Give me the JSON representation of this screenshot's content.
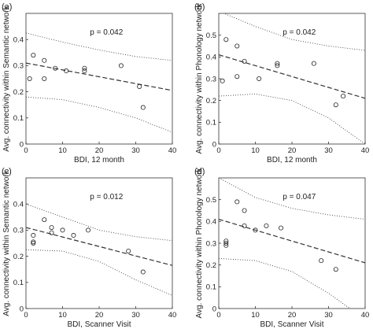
{
  "chart_data": [
    {
      "type": "scatter",
      "panel_label": "(a)",
      "annotation": "p = 0.042",
      "xlabel": "BDI, 12 month",
      "ylabel": "Avg. connectivity within Semantic network",
      "xlim": [
        0,
        40
      ],
      "ylim": [
        0,
        0.5
      ],
      "x_ticks": [
        "0",
        "10",
        "20",
        "30",
        "40"
      ],
      "y_ticks": [
        "0",
        "0.1",
        "0.2",
        "0.3",
        "0.4"
      ],
      "points": [
        {
          "x": 1,
          "y": 0.25
        },
        {
          "x": 2,
          "y": 0.34
        },
        {
          "x": 5,
          "y": 0.32
        },
        {
          "x": 5,
          "y": 0.25
        },
        {
          "x": 8,
          "y": 0.29
        },
        {
          "x": 11,
          "y": 0.28
        },
        {
          "x": 16,
          "y": 0.29
        },
        {
          "x": 16,
          "y": 0.28
        },
        {
          "x": 26,
          "y": 0.3
        },
        {
          "x": 31,
          "y": 0.22
        },
        {
          "x": 32,
          "y": 0.14
        }
      ],
      "fit_line": [
        0.31,
        0.205
      ],
      "ci_upper": [
        [
          0,
          0.425
        ],
        [
          10,
          0.39
        ],
        [
          20,
          0.36
        ],
        [
          30,
          0.335
        ],
        [
          40,
          0.32
        ]
      ],
      "ci_lower": [
        [
          0,
          0.18
        ],
        [
          10,
          0.17
        ],
        [
          20,
          0.14
        ],
        [
          30,
          0.1
        ],
        [
          40,
          0.045
        ]
      ],
      "grid": false,
      "legend": "none"
    },
    {
      "type": "scatter",
      "panel_label": "(b)",
      "annotation": "p = 0.042",
      "xlabel": "BDI, 12 month",
      "ylabel": "Avg. connectivity within Phonology network",
      "xlim": [
        0,
        40
      ],
      "ylim": [
        0,
        0.6
      ],
      "x_ticks": [
        "0",
        "10",
        "20",
        "30",
        "40"
      ],
      "y_ticks": [
        "0",
        "0.1",
        "0.2",
        "0.3",
        "0.4",
        "0.5"
      ],
      "points": [
        {
          "x": 1,
          "y": 0.29
        },
        {
          "x": 2,
          "y": 0.48
        },
        {
          "x": 5,
          "y": 0.45
        },
        {
          "x": 5,
          "y": 0.31
        },
        {
          "x": 7,
          "y": 0.38
        },
        {
          "x": 11,
          "y": 0.3
        },
        {
          "x": 16,
          "y": 0.37
        },
        {
          "x": 16,
          "y": 0.36
        },
        {
          "x": 26,
          "y": 0.37
        },
        {
          "x": 32,
          "y": 0.18
        },
        {
          "x": 34,
          "y": 0.22
        }
      ],
      "fit_line": [
        0.41,
        0.21
      ],
      "ci_upper": [
        [
          0,
          0.61
        ],
        [
          10,
          0.54
        ],
        [
          20,
          0.48
        ],
        [
          30,
          0.45
        ],
        [
          40,
          0.43
        ]
      ],
      "ci_lower": [
        [
          0,
          0.22
        ],
        [
          10,
          0.23
        ],
        [
          20,
          0.2
        ],
        [
          30,
          0.12
        ],
        [
          40,
          0.0
        ]
      ],
      "grid": false,
      "legend": "none"
    },
    {
      "type": "scatter",
      "panel_label": "(c)",
      "annotation": "p = 0.012",
      "xlabel": "BDI, Scanner Visit",
      "ylabel": "Avg. connectivity within Semantic network",
      "xlim": [
        0,
        40
      ],
      "ylim": [
        0,
        0.5
      ],
      "x_ticks": [
        "0",
        "10",
        "20",
        "30",
        "40"
      ],
      "y_ticks": [
        "0",
        "0.1",
        "0.2",
        "0.3",
        "0.4"
      ],
      "points": [
        {
          "x": 2,
          "y": 0.28
        },
        {
          "x": 2,
          "y": 0.25
        },
        {
          "x": 2,
          "y": 0.255
        },
        {
          "x": 5,
          "y": 0.34
        },
        {
          "x": 7,
          "y": 0.31
        },
        {
          "x": 7,
          "y": 0.29
        },
        {
          "x": 10,
          "y": 0.3
        },
        {
          "x": 13,
          "y": 0.28
        },
        {
          "x": 17,
          "y": 0.3
        },
        {
          "x": 28,
          "y": 0.22
        },
        {
          "x": 32,
          "y": 0.14
        }
      ],
      "fit_line": [
        0.31,
        0.165
      ],
      "ci_upper": [
        [
          0,
          0.4
        ],
        [
          10,
          0.35
        ],
        [
          20,
          0.3
        ],
        [
          30,
          0.275
        ],
        [
          40,
          0.26
        ]
      ],
      "ci_lower": [
        [
          0,
          0.225
        ],
        [
          10,
          0.22
        ],
        [
          20,
          0.18
        ],
        [
          30,
          0.11
        ],
        [
          40,
          0.05
        ]
      ],
      "grid": false,
      "legend": "none"
    },
    {
      "type": "scatter",
      "panel_label": "(d)",
      "annotation": "p = 0.047",
      "xlabel": "BDI, Scanner Visit",
      "ylabel": "Avg. connectivity within Phonology network",
      "xlim": [
        0,
        40
      ],
      "ylim": [
        0,
        0.6
      ],
      "x_ticks": [
        "0",
        "10",
        "20",
        "30",
        "40"
      ],
      "y_ticks": [
        "0",
        "0.1",
        "0.2",
        "0.3",
        "0.4",
        "0.5"
      ],
      "points": [
        {
          "x": 2,
          "y": 0.3
        },
        {
          "x": 2,
          "y": 0.31
        },
        {
          "x": 2,
          "y": 0.29
        },
        {
          "x": 5,
          "y": 0.49
        },
        {
          "x": 7,
          "y": 0.45
        },
        {
          "x": 7,
          "y": 0.38
        },
        {
          "x": 10,
          "y": 0.36
        },
        {
          "x": 13,
          "y": 0.38
        },
        {
          "x": 17,
          "y": 0.37
        },
        {
          "x": 28,
          "y": 0.22
        },
        {
          "x": 32,
          "y": 0.18
        }
      ],
      "fit_line": [
        0.41,
        0.21
      ],
      "ci_upper": [
        [
          0,
          0.6
        ],
        [
          10,
          0.51
        ],
        [
          20,
          0.46
        ],
        [
          30,
          0.43
        ],
        [
          40,
          0.41
        ]
      ],
      "ci_lower": [
        [
          0,
          0.23
        ],
        [
          10,
          0.22
        ],
        [
          20,
          0.17
        ],
        [
          30,
          0.07
        ],
        [
          40,
          -0.05
        ]
      ],
      "grid": false,
      "legend": "none"
    }
  ]
}
